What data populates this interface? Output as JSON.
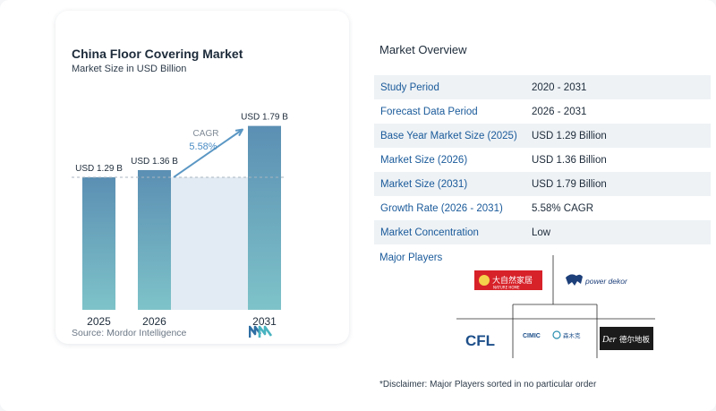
{
  "chart": {
    "title": "China Floor Covering Market",
    "subtitle": "Market Size in USD Billion",
    "source": "Source:  Mordor Intelligence",
    "cagr_label": "CAGR",
    "cagr_value": "5.58%"
  },
  "chart_data": {
    "type": "bar",
    "categories": [
      "2025",
      "2026",
      "2031"
    ],
    "values": [
      1.29,
      1.36,
      1.79
    ],
    "labels": [
      "USD 1.29 B",
      "USD 1.36 B",
      "USD 1.79 B"
    ],
    "ylim": [
      0,
      1.9
    ],
    "grid": false,
    "colors": {
      "bar_top": "#5b8fb3",
      "bar_bottom": "#7ec3c9",
      "band": "#e2ebf3",
      "reference_line": "#a9b4bf",
      "arrow": "#5b97c4",
      "cagr_label": "#7f8a96",
      "cagr_value": "#4a8cc4"
    }
  },
  "overview": {
    "title": "Market Overview",
    "rows": [
      {
        "key": "Study Period",
        "value": "2020 - 2031"
      },
      {
        "key": "Forecast Data Period",
        "value": "2026 - 2031"
      },
      {
        "key": "Base Year Market Size (2025)",
        "value": "USD 1.29 Billion"
      },
      {
        "key": "Market Size (2026)",
        "value": "USD 1.36 Billion"
      },
      {
        "key": "Market Size (2031)",
        "value": "USD 1.79 Billion"
      },
      {
        "key": "Growth Rate (2026 - 2031)",
        "value": "5.58% CAGR"
      },
      {
        "key": "Market Concentration",
        "value": "Low"
      }
    ]
  },
  "players": {
    "title": "Major Players",
    "logos": [
      {
        "name": "nature-home-logo",
        "cn": "大自然家居",
        "en": "NATURE HOME"
      },
      {
        "name": "power-dekor-logo",
        "en": "power dekor"
      },
      {
        "name": "cfl-logo",
        "en": "CFL"
      },
      {
        "name": "cimic-logo",
        "en": "CIMIC",
        "cn": "森木克"
      },
      {
        "name": "der-logo",
        "en": "Der",
        "cn": "德尔地板"
      }
    ]
  },
  "disclaimer": "*Disclaimer: Major Players sorted in no particular order"
}
